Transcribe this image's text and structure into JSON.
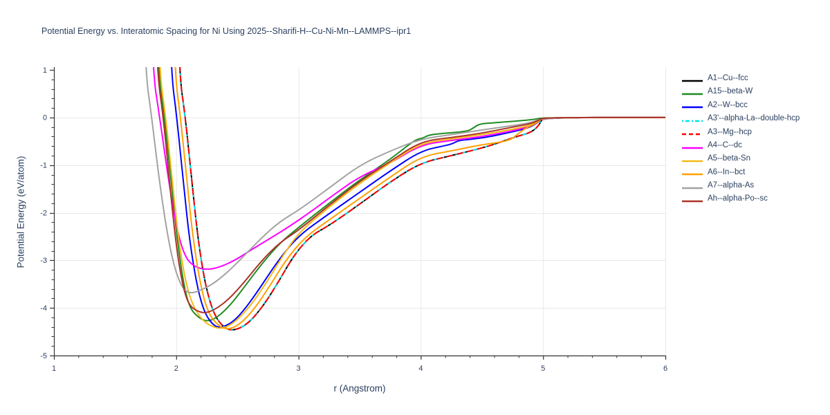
{
  "style": {
    "background": "#ffffff",
    "grid_color": "#e8e8e8",
    "axis_color": "#333333",
    "tick_label_color": "#2a3f5f",
    "title_color": "#2a3f5f",
    "line_width": 2
  },
  "axes": {
    "x": {
      "major_ticks": [
        1,
        2,
        3,
        4,
        5,
        6
      ],
      "minor_step": 0.2,
      "grid": [
        2,
        3,
        4,
        5,
        6
      ]
    },
    "y": {
      "major_ticks": [
        1,
        0,
        -1,
        -2,
        -3,
        -4,
        -5
      ],
      "minor_step": 0.2,
      "grid": [
        0,
        -1,
        -2,
        -3,
        -4
      ]
    }
  },
  "chart_data": {
    "type": "line",
    "title": "Potential Energy vs. Interatomic Spacing for Ni Using 2025--Sharifi-H--Cu-Ni-Mn--LAMMPS--ipr1",
    "xlabel": "r (Angstrom)",
    "ylabel": "Potential Energy (eV/atom)",
    "xlim": [
      1,
      6
    ],
    "ylim": [
      -5,
      1.06
    ],
    "grid": true,
    "legend_position": "right",
    "series": [
      {
        "name": "A1--Cu--fcc",
        "color": "#000000",
        "dash": "solid",
        "points": [
          [
            2.0,
            3.5
          ],
          [
            2.02,
            1.0
          ],
          [
            2.075,
            0.0
          ],
          [
            2.13,
            -1.4
          ],
          [
            2.18,
            -2.6
          ],
          [
            2.24,
            -3.55
          ],
          [
            2.31,
            -4.15
          ],
          [
            2.39,
            -4.42
          ],
          [
            2.47,
            -4.48
          ],
          [
            2.58,
            -4.35
          ],
          [
            2.7,
            -4.0
          ],
          [
            2.83,
            -3.48
          ],
          [
            2.96,
            -2.9
          ],
          [
            3.1,
            -2.48
          ],
          [
            3.25,
            -2.27
          ],
          [
            3.5,
            -1.82
          ],
          [
            3.75,
            -1.35
          ],
          [
            4.0,
            -0.95
          ],
          [
            4.25,
            -0.8
          ],
          [
            4.5,
            -0.64
          ],
          [
            4.65,
            -0.52
          ],
          [
            4.78,
            -0.4
          ],
          [
            4.88,
            -0.33
          ],
          [
            4.94,
            -0.24
          ],
          [
            4.98,
            -0.1
          ],
          [
            5.0,
            0.0
          ],
          [
            6.0,
            0.0
          ]
        ]
      },
      {
        "name": "A15--beta-W",
        "color": "#208b22",
        "dash": "solid",
        "points": [
          [
            1.82,
            3.5
          ],
          [
            1.85,
            1.0
          ],
          [
            1.905,
            0.0
          ],
          [
            1.96,
            -1.4
          ],
          [
            2.01,
            -2.6
          ],
          [
            2.06,
            -3.5
          ],
          [
            2.11,
            -4.0
          ],
          [
            2.18,
            -4.2
          ],
          [
            2.25,
            -4.29
          ],
          [
            2.33,
            -4.21
          ],
          [
            2.44,
            -3.95
          ],
          [
            2.56,
            -3.55
          ],
          [
            2.7,
            -3.07
          ],
          [
            2.85,
            -2.63
          ],
          [
            3.0,
            -2.31
          ],
          [
            3.25,
            -1.8
          ],
          [
            3.5,
            -1.31
          ],
          [
            3.75,
            -0.88
          ],
          [
            3.95,
            -0.47
          ],
          [
            4.02,
            -0.43
          ],
          [
            4.07,
            -0.36
          ],
          [
            4.2,
            -0.33
          ],
          [
            4.38,
            -0.29
          ],
          [
            4.43,
            -0.22
          ],
          [
            4.48,
            -0.13
          ],
          [
            4.6,
            -0.11
          ],
          [
            4.8,
            -0.07
          ],
          [
            4.93,
            -0.04
          ],
          [
            5.0,
            0.0
          ],
          [
            6.0,
            0.0
          ]
        ]
      },
      {
        "name": "A2--W--bcc",
        "color": "#0000ff",
        "dash": "solid",
        "points": [
          [
            1.925,
            3.5
          ],
          [
            1.955,
            1.0
          ],
          [
            2.005,
            0.0
          ],
          [
            2.06,
            -1.4
          ],
          [
            2.11,
            -2.6
          ],
          [
            2.17,
            -3.55
          ],
          [
            2.23,
            -4.1
          ],
          [
            2.3,
            -4.36
          ],
          [
            2.36,
            -4.42
          ],
          [
            2.46,
            -4.31
          ],
          [
            2.57,
            -4.0
          ],
          [
            2.7,
            -3.52
          ],
          [
            2.84,
            -2.98
          ],
          [
            3.0,
            -2.48
          ],
          [
            3.25,
            -2.02
          ],
          [
            3.5,
            -1.57
          ],
          [
            3.75,
            -1.12
          ],
          [
            4.0,
            -0.7
          ],
          [
            4.2,
            -0.59
          ],
          [
            4.26,
            -0.55
          ],
          [
            4.31,
            -0.48
          ],
          [
            4.4,
            -0.46
          ],
          [
            4.55,
            -0.41
          ],
          [
            4.75,
            -0.3
          ],
          [
            4.88,
            -0.22
          ],
          [
            4.96,
            -0.1
          ],
          [
            5.0,
            0.0
          ],
          [
            6.0,
            0.0
          ]
        ]
      },
      {
        "name": "A3'--alpha-La--double-hcp",
        "color": "#00e0e8",
        "dash": "dashdot",
        "points": [
          [
            2.0,
            3.5
          ],
          [
            2.02,
            1.0
          ],
          [
            2.075,
            0.0
          ],
          [
            2.13,
            -1.4
          ],
          [
            2.18,
            -2.6
          ],
          [
            2.24,
            -3.55
          ],
          [
            2.31,
            -4.15
          ],
          [
            2.39,
            -4.42
          ],
          [
            2.47,
            -4.48
          ],
          [
            2.58,
            -4.35
          ],
          [
            2.7,
            -4.0
          ],
          [
            2.83,
            -3.48
          ],
          [
            2.96,
            -2.9
          ],
          [
            3.1,
            -2.48
          ],
          [
            3.25,
            -2.27
          ],
          [
            3.5,
            -1.82
          ],
          [
            3.75,
            -1.35
          ],
          [
            4.0,
            -0.95
          ],
          [
            4.25,
            -0.8
          ],
          [
            4.5,
            -0.64
          ],
          [
            4.65,
            -0.52
          ],
          [
            4.78,
            -0.4
          ],
          [
            4.88,
            -0.33
          ],
          [
            4.94,
            -0.24
          ],
          [
            4.98,
            -0.1
          ],
          [
            5.0,
            0.0
          ],
          [
            6.0,
            0.0
          ]
        ]
      },
      {
        "name": "A3--Mg--hcp",
        "color": "#ff0000",
        "dash": "dash",
        "points": [
          [
            2.0,
            3.5
          ],
          [
            2.02,
            1.0
          ],
          [
            2.075,
            0.0
          ],
          [
            2.13,
            -1.4
          ],
          [
            2.18,
            -2.6
          ],
          [
            2.24,
            -3.55
          ],
          [
            2.31,
            -4.15
          ],
          [
            2.39,
            -4.42
          ],
          [
            2.47,
            -4.48
          ],
          [
            2.58,
            -4.35
          ],
          [
            2.7,
            -4.0
          ],
          [
            2.83,
            -3.48
          ],
          [
            2.96,
            -2.9
          ],
          [
            3.1,
            -2.48
          ],
          [
            3.25,
            -2.27
          ],
          [
            3.5,
            -1.82
          ],
          [
            3.75,
            -1.35
          ],
          [
            4.0,
            -0.95
          ],
          [
            4.25,
            -0.8
          ],
          [
            4.5,
            -0.64
          ],
          [
            4.65,
            -0.52
          ],
          [
            4.78,
            -0.4
          ],
          [
            4.88,
            -0.33
          ],
          [
            4.94,
            -0.24
          ],
          [
            4.98,
            -0.1
          ],
          [
            5.0,
            0.0
          ],
          [
            6.0,
            0.0
          ]
        ]
      },
      {
        "name": "A4--C--dc",
        "color": "#ff00ff",
        "dash": "solid",
        "points": [
          [
            1.775,
            3.5
          ],
          [
            1.805,
            1.0
          ],
          [
            1.865,
            0.0
          ],
          [
            1.93,
            -1.2
          ],
          [
            2.0,
            -2.3
          ],
          [
            2.07,
            -2.93
          ],
          [
            2.15,
            -3.14
          ],
          [
            2.25,
            -3.2
          ],
          [
            2.35,
            -3.15
          ],
          [
            2.48,
            -3.0
          ],
          [
            2.62,
            -2.77
          ],
          [
            2.78,
            -2.52
          ],
          [
            2.93,
            -2.28
          ],
          [
            3.1,
            -1.98
          ],
          [
            3.3,
            -1.6
          ],
          [
            3.5,
            -1.24
          ],
          [
            3.75,
            -0.96
          ],
          [
            4.0,
            -0.57
          ],
          [
            4.25,
            -0.48
          ],
          [
            4.5,
            -0.4
          ],
          [
            4.75,
            -0.28
          ],
          [
            4.9,
            -0.18
          ],
          [
            4.96,
            -0.09
          ],
          [
            5.0,
            0.0
          ],
          [
            6.0,
            0.0
          ]
        ]
      },
      {
        "name": "A5--beta-Sn",
        "color": "#f3b918",
        "dash": "solid",
        "points": [
          [
            1.825,
            3.5
          ],
          [
            1.86,
            1.0
          ],
          [
            1.915,
            0.0
          ],
          [
            1.97,
            -1.4
          ],
          [
            2.02,
            -2.6
          ],
          [
            2.08,
            -3.5
          ],
          [
            2.14,
            -3.98
          ],
          [
            2.22,
            -4.28
          ],
          [
            2.3,
            -4.4
          ],
          [
            2.38,
            -4.44
          ],
          [
            2.48,
            -4.3
          ],
          [
            2.6,
            -3.98
          ],
          [
            2.73,
            -3.5
          ],
          [
            2.86,
            -2.95
          ],
          [
            3.0,
            -2.42
          ],
          [
            3.25,
            -1.88
          ],
          [
            3.5,
            -1.38
          ],
          [
            3.75,
            -0.95
          ],
          [
            4.0,
            -0.54
          ],
          [
            4.25,
            -0.45
          ],
          [
            4.5,
            -0.36
          ],
          [
            4.75,
            -0.25
          ],
          [
            4.9,
            -0.16
          ],
          [
            4.96,
            -0.07
          ],
          [
            5.0,
            0.0
          ],
          [
            6.0,
            0.0
          ]
        ]
      },
      {
        "name": "A6--In--bct",
        "color": "#ffa000",
        "dash": "solid",
        "points": [
          [
            1.95,
            3.5
          ],
          [
            1.985,
            1.0
          ],
          [
            2.035,
            0.0
          ],
          [
            2.09,
            -1.4
          ],
          [
            2.14,
            -2.6
          ],
          [
            2.2,
            -3.55
          ],
          [
            2.26,
            -4.1
          ],
          [
            2.34,
            -4.37
          ],
          [
            2.42,
            -4.46
          ],
          [
            2.52,
            -4.35
          ],
          [
            2.64,
            -4.02
          ],
          [
            2.77,
            -3.52
          ],
          [
            2.9,
            -2.98
          ],
          [
            3.05,
            -2.52
          ],
          [
            3.25,
            -2.15
          ],
          [
            3.5,
            -1.7
          ],
          [
            3.75,
            -1.25
          ],
          [
            4.0,
            -0.82
          ],
          [
            4.25,
            -0.7
          ],
          [
            4.5,
            -0.57
          ],
          [
            4.65,
            -0.52
          ],
          [
            4.74,
            -0.46
          ],
          [
            4.8,
            -0.33
          ],
          [
            4.86,
            -0.22
          ],
          [
            4.92,
            -0.15
          ],
          [
            4.97,
            -0.07
          ],
          [
            5.0,
            0.0
          ],
          [
            6.0,
            0.0
          ]
        ]
      },
      {
        "name": "A7--alpha-As",
        "color": "#a2a2a2",
        "dash": "solid",
        "points": [
          [
            1.715,
            3.5
          ],
          [
            1.745,
            1.0
          ],
          [
            1.8,
            0.0
          ],
          [
            1.86,
            -1.3
          ],
          [
            1.93,
            -2.5
          ],
          [
            1.99,
            -3.2
          ],
          [
            2.05,
            -3.58
          ],
          [
            2.11,
            -3.7
          ],
          [
            2.19,
            -3.64
          ],
          [
            2.3,
            -3.5
          ],
          [
            2.42,
            -3.25
          ],
          [
            2.55,
            -2.92
          ],
          [
            2.7,
            -2.52
          ],
          [
            2.85,
            -2.18
          ],
          [
            3.0,
            -1.95
          ],
          [
            3.25,
            -1.48
          ],
          [
            3.5,
            -1.0
          ],
          [
            3.75,
            -0.7
          ],
          [
            4.0,
            -0.45
          ],
          [
            4.25,
            -0.36
          ],
          [
            4.5,
            -0.26
          ],
          [
            4.75,
            -0.17
          ],
          [
            4.9,
            -0.11
          ],
          [
            5.0,
            0.0
          ],
          [
            6.0,
            0.0
          ]
        ]
      },
      {
        "name": "Ah--alpha-Po--sc",
        "color": "#ab3228",
        "dash": "solid",
        "points": [
          [
            1.805,
            3.5
          ],
          [
            1.84,
            1.0
          ],
          [
            1.895,
            0.0
          ],
          [
            1.95,
            -1.5
          ],
          [
            2.0,
            -2.7
          ],
          [
            2.05,
            -3.5
          ],
          [
            2.1,
            -3.93
          ],
          [
            2.17,
            -4.07
          ],
          [
            2.24,
            -4.11
          ],
          [
            2.32,
            -4.03
          ],
          [
            2.43,
            -3.82
          ],
          [
            2.56,
            -3.45
          ],
          [
            2.7,
            -3.0
          ],
          [
            2.85,
            -2.62
          ],
          [
            3.0,
            -2.37
          ],
          [
            3.25,
            -1.84
          ],
          [
            3.5,
            -1.34
          ],
          [
            3.75,
            -0.92
          ],
          [
            4.0,
            -0.5
          ],
          [
            4.25,
            -0.42
          ],
          [
            4.5,
            -0.33
          ],
          [
            4.75,
            -0.2
          ],
          [
            4.9,
            -0.13
          ],
          [
            4.97,
            -0.05
          ],
          [
            5.0,
            0.0
          ],
          [
            6.0,
            0.0
          ]
        ]
      }
    ]
  }
}
